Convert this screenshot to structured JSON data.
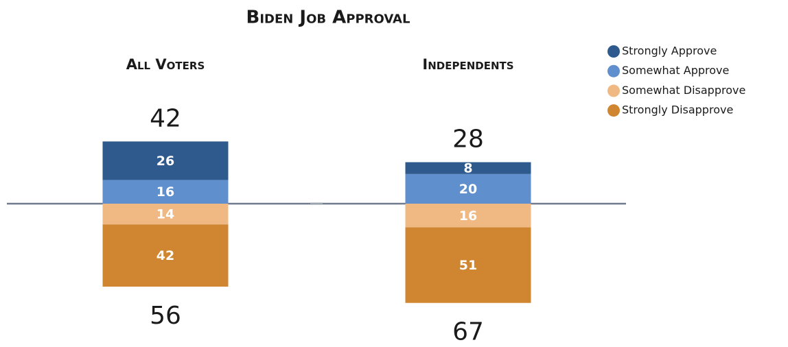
{
  "chart_data": {
    "type": "bar",
    "title": "Biden Job Approval",
    "categories": [
      "All Voters",
      "Independents"
    ],
    "series": [
      {
        "name": "Strongly Approve",
        "color": "#2e5a8e",
        "values": [
          26,
          8
        ]
      },
      {
        "name": "Somewhat Approve",
        "color": "#5f8fcc",
        "values": [
          16,
          20
        ]
      },
      {
        "name": "Somewhat Disapprove",
        "color": "#f0b882",
        "values": [
          14,
          16
        ]
      },
      {
        "name": "Strongly Disapprove",
        "color": "#d08630",
        "values": [
          42,
          51
        ]
      }
    ],
    "approve_totals": [
      42,
      28
    ],
    "disapprove_totals": [
      56,
      67
    ],
    "legend": "top-right"
  }
}
